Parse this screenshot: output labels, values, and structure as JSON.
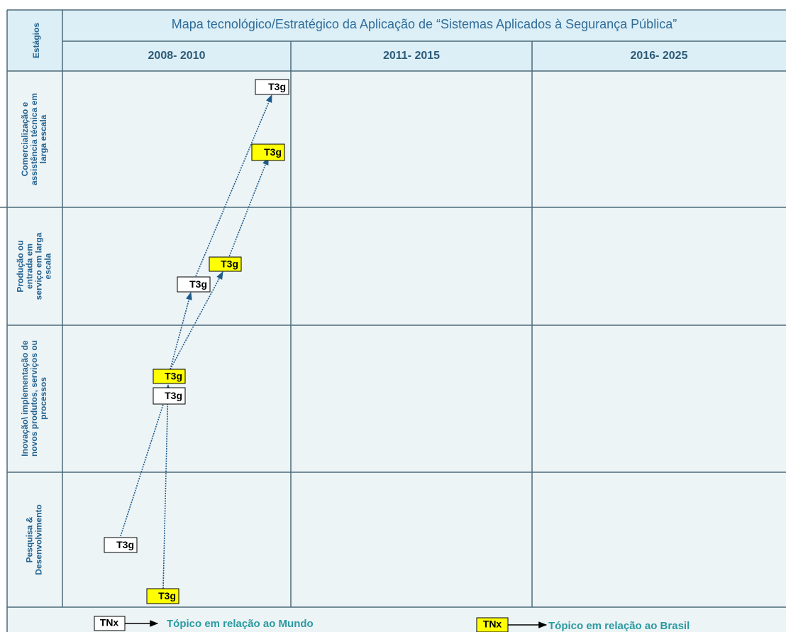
{
  "title": "Mapa tecnológico/Estratégico da Aplicação de “Sistemas Aplicados à Segurança Pública”",
  "stages_header": "Estágios",
  "periods": [
    "2008- 2010",
    "2011- 2015",
    "2016- 2025"
  ],
  "stages": [
    [
      "Comercialização e",
      "assistência técnica em",
      "larga escala"
    ],
    [
      "Produção ou",
      "entrada em",
      "serviço em larga",
      "escala"
    ],
    [
      "Inovação\\ implementação de",
      "novos produtos, serviços ou",
      "processos"
    ],
    [
      "Pesquisa &",
      "Desenvolvimento"
    ]
  ],
  "topics": [
    {
      "label": "T3g"
    },
    {
      "label": "T3g"
    },
    {
      "label": "T3g"
    },
    {
      "label": "T3g"
    },
    {
      "label": "T3g"
    },
    {
      "label": "T3g"
    },
    {
      "label": "T3g"
    },
    {
      "label": "T3g"
    }
  ],
  "legend": [
    {
      "box": "TNx",
      "text": "Tópico em relação ao Mundo"
    },
    {
      "box": "TNx",
      "text": "Tópico em relação ao Brasil"
    }
  ]
}
